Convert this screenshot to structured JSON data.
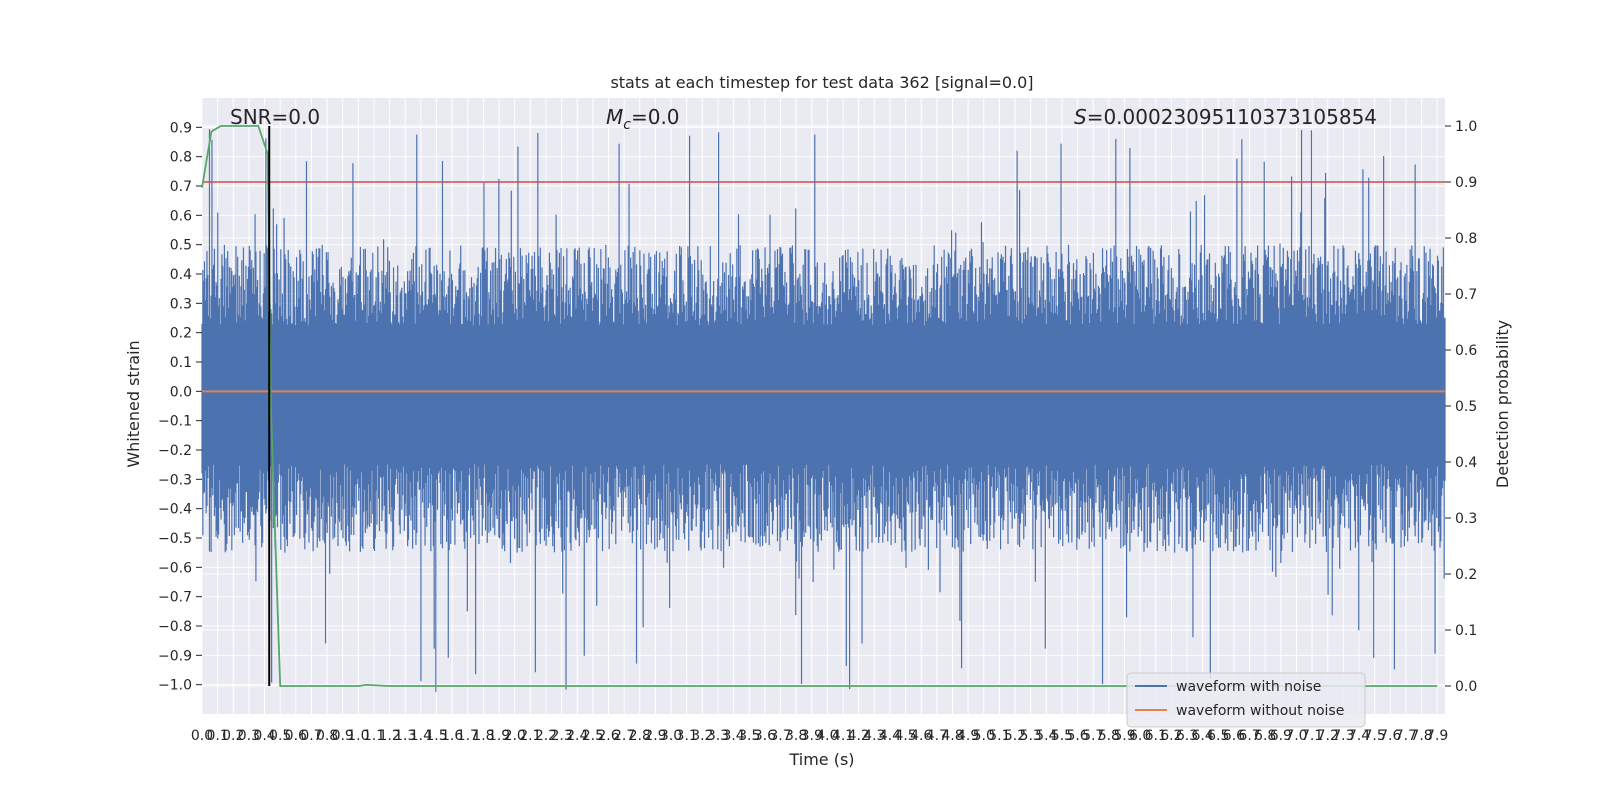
{
  "chart_data": {
    "type": "line",
    "title": "stats at each timestep for test data 362 [signal=0.0]",
    "xlabel": "Time (s)",
    "ylabel_left": "Whitened strain",
    "ylabel_right": "Detection probability",
    "xlim": [
      0.0,
      7.95
    ],
    "ylim_left": [
      -1.1,
      1.0
    ],
    "ylim_right": [
      -0.05,
      1.05
    ],
    "x_ticks": [
      "0.0",
      "0.1",
      "0.2",
      "0.3",
      "0.4",
      "0.5",
      "0.6",
      "0.7",
      "0.8",
      "0.9",
      "1.0",
      "1.1",
      "1.2",
      "1.3",
      "1.4",
      "1.5",
      "1.6",
      "1.7",
      "1.8",
      "1.9",
      "2.0",
      "2.1",
      "2.2",
      "2.3",
      "2.4",
      "2.5",
      "2.6",
      "2.7",
      "2.8",
      "2.9",
      "3.0",
      "3.1",
      "3.2",
      "3.3",
      "3.4",
      "3.5",
      "3.6",
      "3.7",
      "3.8",
      "3.9",
      "4.0",
      "4.1",
      "4.2",
      "4.3",
      "4.4",
      "4.5",
      "4.6",
      "4.7",
      "4.8",
      "4.9",
      "5.0",
      "5.1",
      "5.2",
      "5.3",
      "5.4",
      "5.5",
      "5.6",
      "5.7",
      "5.8",
      "5.9",
      "6.0",
      "6.1",
      "6.2",
      "6.3",
      "6.4",
      "6.5",
      "6.6",
      "6.7",
      "6.8",
      "6.9",
      "7.0",
      "7.1",
      "7.2",
      "7.3",
      "7.4",
      "7.5",
      "7.6",
      "7.7",
      "7.8",
      "7.9"
    ],
    "y_ticks_left": [
      "0.9",
      "0.8",
      "0.7",
      "0.6",
      "0.5",
      "0.4",
      "0.3",
      "0.2",
      "0.1",
      "0.0",
      "−0.1",
      "−0.2",
      "−0.3",
      "−0.4",
      "−0.5",
      "−0.6",
      "−0.7",
      "−0.8",
      "−0.9",
      "−1.0"
    ],
    "y_ticks_right": [
      "1.0",
      "0.9",
      "0.8",
      "0.7",
      "0.6",
      "0.5",
      "0.4",
      "0.3",
      "0.2",
      "0.1",
      "0.0"
    ],
    "annotations": {
      "snr": "SNR=0.0",
      "mc_symbol": "M",
      "mc_sub": "c",
      "mc_value": "=0.0",
      "s_symbol": "S",
      "s_value": "=0.00023095110373105854"
    },
    "threshold": 0.9,
    "marker_time": 0.43,
    "grid": true,
    "legend_position": "lower right",
    "series": [
      {
        "name": "waveform with noise",
        "color": "#4c72b0",
        "noise_envelope": {
          "typical_max": 0.5,
          "typical_min": -0.55,
          "peak_max": 0.9,
          "peak_min": -1.03
        }
      },
      {
        "name": "waveform without noise",
        "color": "#dd8452",
        "value": 0.0
      },
      {
        "name": "",
        "color": "#55a868",
        "axis": "right",
        "x": [
          0.0,
          0.06,
          0.12,
          0.18,
          0.24,
          0.3,
          0.36,
          0.42,
          0.44,
          0.5,
          0.55,
          0.6,
          0.8,
          0.9,
          1.0,
          1.05,
          1.2,
          1.5,
          2.0,
          3.0,
          4.0,
          5.0,
          6.0,
          7.0,
          7.9
        ],
        "values": [
          0.89,
          0.99,
          1.0,
          1.0,
          1.0,
          1.0,
          1.0,
          0.95,
          0.5,
          0.0,
          0.0,
          0.0,
          0.0,
          0.0,
          0.0,
          0.002,
          0.0,
          0.0,
          0.0,
          0.0,
          0.0,
          0.0,
          0.0,
          0.0,
          0.0
        ]
      }
    ]
  },
  "colors": {
    "noisy": "#4c72b0",
    "clean": "#dd8452",
    "probability": "#55a868",
    "threshold": "#c44e52",
    "marker": "#000000",
    "plot_background": "#eaeaf2",
    "grid": "#ffffff"
  }
}
